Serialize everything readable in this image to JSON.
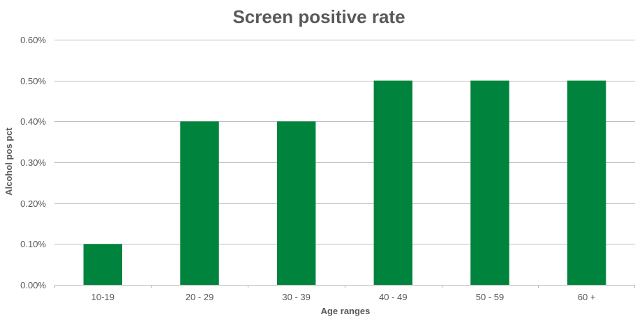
{
  "chart_data": {
    "type": "bar",
    "title": "Screen positive rate",
    "xlabel": "Age ranges",
    "ylabel": "Alcohol pos pct",
    "categories": [
      "10-19",
      "20 - 29",
      "30 - 39",
      "40 - 49",
      "50 - 59",
      "60 +"
    ],
    "values": [
      0.001,
      0.004,
      0.004,
      0.005,
      0.005,
      0.005
    ],
    "ylim": [
      0,
      0.006
    ],
    "yticks": [
      0,
      0.001,
      0.002,
      0.003,
      0.004,
      0.005,
      0.006
    ],
    "ytick_labels": [
      "0.00%",
      "0.10%",
      "0.20%",
      "0.30%",
      "0.40%",
      "0.50%",
      "0.60%"
    ],
    "grid": true,
    "legend": "none",
    "bar_color": "#00843D",
    "grid_color": "#BFBFBF",
    "text_color": "#595959"
  }
}
